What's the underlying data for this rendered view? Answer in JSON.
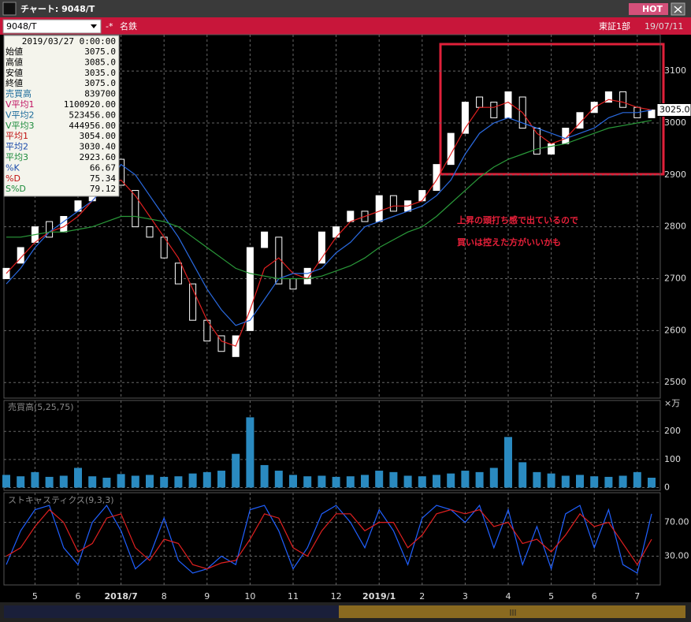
{
  "window": {
    "title": "チャート: 9048/T",
    "hot": "HOT",
    "symbol": "9048/T",
    "name": "名鉄",
    "market": "東証1部",
    "date": "19/07/11"
  },
  "info_panel": {
    "date": "2019/03/27 0:00:00",
    "rows": [
      {
        "label": "始値",
        "value": "3075.0",
        "color": "#000000"
      },
      {
        "label": "高値",
        "value": "3085.0",
        "color": "#000000"
      },
      {
        "label": "安値",
        "value": "3035.0",
        "color": "#000000"
      },
      {
        "label": "終値",
        "value": "3075.0",
        "color": "#000000"
      },
      {
        "label": "売買高",
        "value": "839700",
        "color": "#1a6a9a"
      },
      {
        "label": "V平均1",
        "value": "1100920.00",
        "color": "#c01060"
      },
      {
        "label": "V平均2",
        "value": "523456.00",
        "color": "#1a6a9a"
      },
      {
        "label": "V平均3",
        "value": "444956.00",
        "color": "#1a8a3a"
      },
      {
        "label": "平均1",
        "value": "3054.00",
        "color": "#c01010"
      },
      {
        "label": "平均2",
        "value": "3030.40",
        "color": "#1a4aaa"
      },
      {
        "label": "平均3",
        "value": "2923.60",
        "color": "#1a8a3a"
      },
      {
        "label": "%K",
        "value": "66.67",
        "color": "#1a4aaa"
      },
      {
        "label": "%D",
        "value": "75.34",
        "color": "#c01010"
      },
      {
        "label": "S%D",
        "value": "79.12",
        "color": "#1a8a3a"
      }
    ]
  },
  "chart_data": [
    {
      "type": "candlestick",
      "categories": [
        null,
        null,
        "5",
        null,
        null,
        "6",
        null,
        null,
        "2018/7",
        null,
        null,
        "8",
        null,
        null,
        "9",
        null,
        null,
        "10",
        null,
        null,
        "11",
        null,
        null,
        "12",
        null,
        null,
        "2019/1",
        null,
        null,
        "2",
        null,
        null,
        "3",
        null,
        null,
        "4",
        null,
        null,
        "5",
        null,
        null,
        "6",
        null,
        null,
        "7",
        null
      ],
      "open": [
        2700,
        2730,
        2770,
        2810,
        2790,
        2830,
        2850,
        2880,
        2930,
        2870,
        2800,
        2780,
        2730,
        2690,
        2620,
        2590,
        2550,
        2600,
        2760,
        2780,
        2700,
        2690,
        2730,
        2780,
        2810,
        2830,
        2810,
        2860,
        2830,
        2850,
        2870,
        2920,
        2980,
        3050,
        3040,
        3010,
        3050,
        2990,
        2940,
        2960,
        2990,
        3020,
        3040,
        3060,
        3030,
        3010
      ],
      "close": [
        2720,
        2760,
        2800,
        2780,
        2820,
        2850,
        2870,
        2930,
        2880,
        2800,
        2780,
        2740,
        2690,
        2620,
        2580,
        2560,
        2590,
        2760,
        2790,
        2690,
        2680,
        2720,
        2790,
        2800,
        2830,
        2810,
        2860,
        2830,
        2850,
        2870,
        2920,
        2980,
        3040,
        3030,
        3010,
        3060,
        2990,
        2940,
        2960,
        2990,
        3020,
        3040,
        3060,
        3030,
        3010,
        3025
      ],
      "series": [
        {
          "name": "平均1",
          "color": "#e02020",
          "values": [
            2710,
            2740,
            2770,
            2790,
            2800,
            2820,
            2850,
            2880,
            2890,
            2860,
            2820,
            2780,
            2740,
            2680,
            2620,
            2580,
            2570,
            2640,
            2720,
            2740,
            2710,
            2700,
            2740,
            2780,
            2810,
            2820,
            2830,
            2840,
            2840,
            2850,
            2890,
            2940,
            2990,
            3030,
            3030,
            3040,
            3020,
            2980,
            2960,
            2970,
            3000,
            3030,
            3045,
            3040,
            3030,
            3025
          ]
        },
        {
          "name": "平均2",
          "color": "#2a6ae0",
          "values": [
            2690,
            2720,
            2760,
            2790,
            2810,
            2830,
            2850,
            2880,
            2920,
            2900,
            2860,
            2820,
            2780,
            2730,
            2680,
            2640,
            2610,
            2620,
            2660,
            2700,
            2710,
            2710,
            2720,
            2750,
            2770,
            2800,
            2810,
            2820,
            2830,
            2840,
            2860,
            2890,
            2940,
            2980,
            3000,
            3010,
            3000,
            2990,
            2980,
            2970,
            2980,
            2990,
            3010,
            3020,
            3020,
            3025
          ]
        },
        {
          "name": "平均3",
          "color": "#2a9a3a",
          "values": [
            2780,
            2780,
            2785,
            2790,
            2790,
            2795,
            2800,
            2810,
            2820,
            2820,
            2815,
            2810,
            2800,
            2780,
            2760,
            2740,
            2720,
            2710,
            2705,
            2700,
            2700,
            2700,
            2705,
            2715,
            2725,
            2740,
            2760,
            2775,
            2790,
            2800,
            2820,
            2845,
            2870,
            2895,
            2915,
            2930,
            2940,
            2950,
            2955,
            2960,
            2970,
            2980,
            2990,
            2995,
            3000,
            3005
          ]
        }
      ],
      "ylim": [
        2470,
        3170
      ],
      "yticks": [
        2500,
        2600,
        2700,
        2800,
        2900,
        3000,
        3100
      ],
      "current_price": {
        "value": 3025,
        "label": "3025.0"
      },
      "annotation": [
        "上昇の頭打ち感で出ているので",
        "買いは控えた方がいいかも"
      ]
    },
    {
      "type": "bar",
      "title": "売買高(5,25,75)",
      "unit": "×万",
      "color": "#2a8ac0",
      "values": [
        45,
        40,
        55,
        38,
        42,
        70,
        40,
        35,
        48,
        42,
        45,
        38,
        40,
        50,
        55,
        60,
        120,
        250,
        80,
        60,
        45,
        40,
        42,
        38,
        40,
        45,
        60,
        55,
        42,
        40,
        45,
        50,
        60,
        55,
        70,
        180,
        90,
        55,
        50,
        42,
        45,
        40,
        38,
        42,
        55,
        35
      ],
      "ylim": [
        -10,
        310
      ],
      "yticks": [
        0,
        100,
        200
      ]
    },
    {
      "type": "line",
      "title": "ストキャスティクス(9,3,3)",
      "series": [
        {
          "name": "%K",
          "color": "#2060ff",
          "values": [
            20,
            60,
            85,
            90,
            40,
            20,
            70,
            90,
            60,
            15,
            30,
            75,
            25,
            10,
            15,
            30,
            20,
            85,
            90,
            60,
            15,
            40,
            80,
            90,
            70,
            40,
            85,
            60,
            20,
            75,
            90,
            85,
            70,
            90,
            40,
            85,
            20,
            65,
            15,
            80,
            90,
            40,
            85,
            20,
            10,
            80
          ]
        },
        {
          "name": "%D",
          "color": "#e02020",
          "values": [
            30,
            40,
            65,
            85,
            70,
            35,
            45,
            75,
            80,
            40,
            25,
            50,
            45,
            20,
            15,
            22,
            25,
            50,
            80,
            75,
            40,
            30,
            60,
            80,
            80,
            60,
            70,
            70,
            40,
            55,
            80,
            85,
            80,
            85,
            65,
            70,
            45,
            50,
            35,
            55,
            80,
            65,
            70,
            45,
            20,
            50
          ]
        }
      ],
      "ylim": [
        -4,
        105
      ],
      "yticks": [
        {
          "value": 30,
          "label": "30.00"
        },
        {
          "value": 70,
          "label": "70.00"
        }
      ]
    }
  ]
}
